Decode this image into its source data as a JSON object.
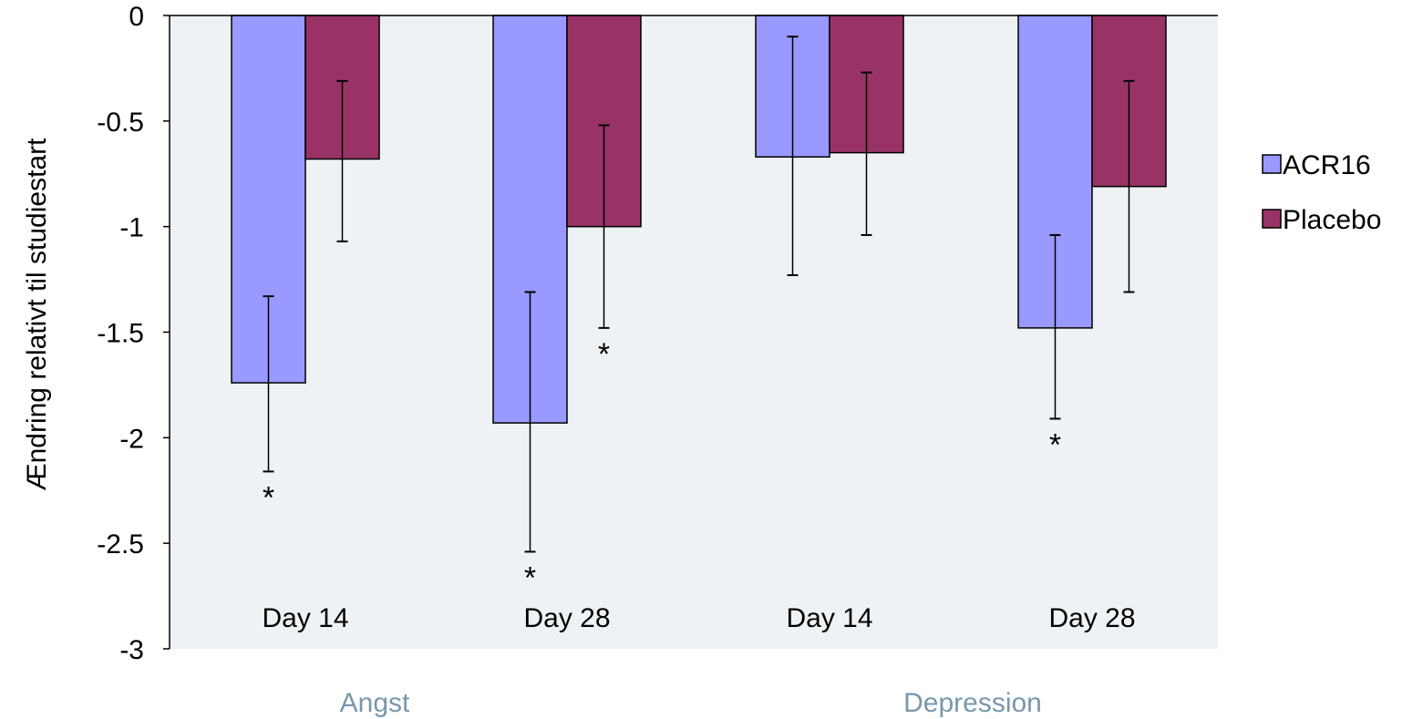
{
  "chart_data": {
    "type": "bar",
    "title": "",
    "xlabel": "",
    "ylabel": "Ændring  relativt  til studiestart",
    "ylim": [
      -3,
      0
    ],
    "yticks": [
      "0",
      "-0.5",
      "-1",
      "-1.5",
      "-2",
      "-2.5",
      "-3"
    ],
    "ytick_values": [
      0,
      -0.5,
      -1,
      -1.5,
      -2,
      -2.5,
      -3
    ],
    "categories": [
      "Day 14",
      "Day 28",
      "Day 14",
      "Day 28"
    ],
    "groups": [
      {
        "label": "Angst",
        "categories": [
          0,
          1
        ]
      },
      {
        "label": "Depression",
        "categories": [
          2,
          3
        ]
      }
    ],
    "series": [
      {
        "name": "ACR16",
        "color": "#9999ff",
        "values": [
          -1.74,
          -1.93,
          -0.67,
          -1.48
        ],
        "err_low": [
          -2.16,
          -2.54,
          -1.23,
          -1.91
        ],
        "err_high": [
          -1.33,
          -1.31,
          -0.1,
          -1.04
        ],
        "significant": [
          "*",
          "*",
          "",
          "*"
        ]
      },
      {
        "name": "Placebo",
        "color": "#993366",
        "values": [
          -0.68,
          -1.0,
          -0.65,
          -0.81
        ],
        "err_low": [
          -1.07,
          -1.48,
          -1.04,
          -1.31
        ],
        "err_high": [
          -0.31,
          -0.52,
          -0.27,
          -0.31
        ],
        "significant": [
          "",
          "*",
          "",
          ""
        ]
      }
    ],
    "legend_position": "right",
    "grid": false,
    "plot_background": "#eef2f5"
  }
}
